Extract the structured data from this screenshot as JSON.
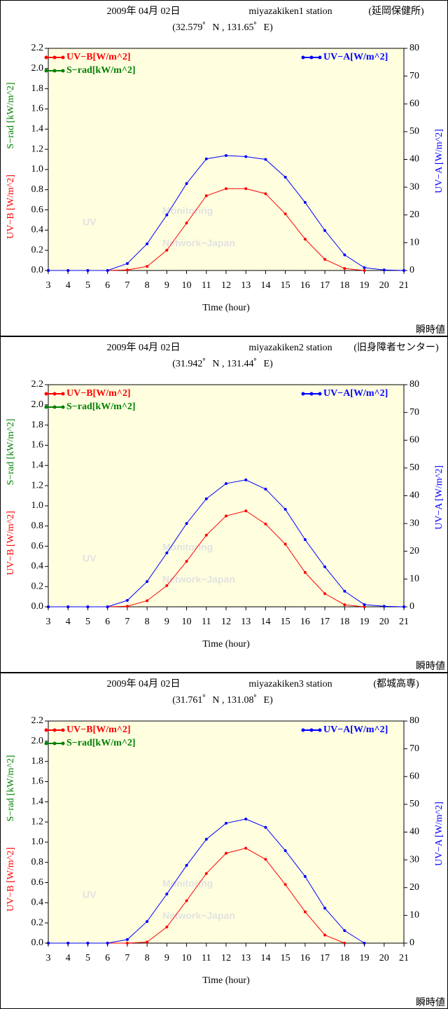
{
  "chart_data": [
    {
      "type": "line",
      "title": "2009年 04月 02日",
      "station": "miyazakiken1 station",
      "station_note": "(延岡保健所)",
      "subtitle": "(32.579゜N , 131.65゜E)",
      "xlabel": "Time (hour)",
      "corner_note": "瞬時値",
      "watermark": [
        "UV",
        "Monitoring",
        "Network−Japan"
      ],
      "background": "#ffffe0",
      "x": [
        3,
        4,
        5,
        6,
        7,
        8,
        9,
        10,
        11,
        12,
        13,
        14,
        15,
        16,
        17,
        18,
        19,
        20,
        21
      ],
      "xlim": [
        3,
        21
      ],
      "xticks": [
        3,
        4,
        5,
        6,
        7,
        8,
        9,
        10,
        11,
        12,
        13,
        14,
        15,
        16,
        17,
        18,
        19,
        20,
        21
      ],
      "ylim": [
        0,
        2.2
      ],
      "yticks": [
        {
          "value": 0,
          "label": "0.0"
        },
        0.2,
        0.4,
        0.6,
        0.8,
        {
          "value": 1,
          "label": "1.0"
        },
        1.2,
        1.4,
        1.6,
        1.8,
        {
          "value": 2,
          "label": "2.0"
        },
        2.2
      ],
      "y2lim": [
        0,
        80
      ],
      "y2ticks": [
        0,
        10,
        20,
        30,
        40,
        50,
        60,
        70,
        80
      ],
      "series": [
        {
          "name": "UV−B[W/m^2]",
          "axis_label": "UV−B [W/m^2]",
          "color": "#ff0000",
          "values": [
            0,
            0,
            0,
            0,
            0.005,
            0.04,
            0.2,
            0.47,
            0.74,
            0.81,
            0.81,
            0.76,
            0.56,
            0.31,
            0.11,
            0.02,
            0,
            null,
            null
          ]
        },
        {
          "name": "S−rad[kW/m^2]",
          "axis_label": "S−rad [kW/m^2]",
          "color": "#008000",
          "values": [
            null,
            null,
            null,
            null,
            null,
            null,
            null,
            null,
            null,
            null,
            null,
            null,
            null,
            null,
            null,
            null,
            null,
            null,
            null
          ]
        },
        {
          "name": "UV−A[W/m^2]",
          "axis_label": "UV−A [W/m^2]",
          "color": "#0000ff",
          "axis": "y2",
          "values": [
            0,
            0,
            0,
            0,
            2.5,
            9.6,
            20,
            31.3,
            40.2,
            41.4,
            41,
            40,
            33.6,
            24.5,
            14.4,
            5.6,
            1,
            0.2,
            0
          ]
        }
      ]
    },
    {
      "type": "line",
      "title": "2009年 04月 02日",
      "station": "miyazakiken2 station",
      "station_note": "(旧身障者センター)",
      "subtitle": "(31.942゜N , 131.44゜E)",
      "xlabel": "Time (hour)",
      "corner_note": "瞬時値",
      "watermark": [
        "UV",
        "Monitoring",
        "Network−Japan"
      ],
      "background": "#ffffe0",
      "x": [
        3,
        4,
        5,
        6,
        7,
        8,
        9,
        10,
        11,
        12,
        13,
        14,
        15,
        16,
        17,
        18,
        19,
        20,
        21
      ],
      "xlim": [
        3,
        21
      ],
      "xticks": [
        3,
        4,
        5,
        6,
        7,
        8,
        9,
        10,
        11,
        12,
        13,
        14,
        15,
        16,
        17,
        18,
        19,
        20,
        21
      ],
      "ylim": [
        0,
        2.2
      ],
      "yticks": [
        {
          "value": 0,
          "label": "0.0"
        },
        0.2,
        0.4,
        0.6,
        0.8,
        {
          "value": 1,
          "label": "1.0"
        },
        1.2,
        1.4,
        1.6,
        1.8,
        {
          "value": 2,
          "label": "2.0"
        },
        2.2
      ],
      "y2lim": [
        0,
        80
      ],
      "y2ticks": [
        0,
        10,
        20,
        30,
        40,
        50,
        60,
        70,
        80
      ],
      "series": [
        {
          "name": "UV−B[W/m^2]",
          "axis_label": "UV−B [W/m^2]",
          "color": "#ff0000",
          "values": [
            0,
            0,
            0,
            0,
            0.005,
            0.06,
            0.21,
            0.45,
            0.71,
            0.9,
            0.95,
            0.82,
            0.62,
            0.34,
            0.13,
            0.02,
            0,
            null,
            null
          ]
        },
        {
          "name": "S−rad[kW/m^2]",
          "axis_label": "S−rad [kW/m^2]",
          "color": "#008000",
          "values": [
            null,
            null,
            null,
            null,
            null,
            null,
            null,
            null,
            null,
            null,
            null,
            null,
            null,
            null,
            null,
            null,
            null,
            null,
            null
          ]
        },
        {
          "name": "UV−A[W/m^2]",
          "axis_label": "UV−A [W/m^2]",
          "color": "#0000ff",
          "axis": "y2",
          "values": [
            0,
            0,
            0,
            0,
            2.3,
            9.1,
            19.4,
            30,
            38.9,
            44.4,
            45.7,
            42.4,
            35.1,
            24.2,
            14.4,
            5.6,
            0.8,
            0.2,
            0
          ]
        }
      ]
    },
    {
      "type": "line",
      "title": "2009年 04月 02日",
      "station": "miyazakiken3 station",
      "station_note": "(都城高専)",
      "subtitle": "(31.761゜N , 131.08゜E)",
      "xlabel": "Time (hour)",
      "corner_note": "瞬時値",
      "watermark": [
        "UV",
        "Monitoring",
        "Network−Japan"
      ],
      "background": "#ffffe0",
      "x": [
        3,
        4,
        5,
        6,
        7,
        8,
        9,
        10,
        11,
        12,
        13,
        14,
        15,
        16,
        17,
        18,
        19,
        20,
        21
      ],
      "xlim": [
        3,
        21
      ],
      "xticks": [
        3,
        4,
        5,
        6,
        7,
        8,
        9,
        10,
        11,
        12,
        13,
        14,
        15,
        16,
        17,
        18,
        19,
        20,
        21
      ],
      "ylim": [
        0,
        2.2
      ],
      "yticks": [
        {
          "value": 0,
          "label": "0.0"
        },
        0.2,
        0.4,
        0.6,
        0.8,
        {
          "value": 1,
          "label": "1.0"
        },
        1.2,
        1.4,
        1.6,
        1.8,
        {
          "value": 2,
          "label": "2.0"
        },
        2.2
      ],
      "y2lim": [
        0,
        80
      ],
      "y2ticks": [
        0,
        10,
        20,
        30,
        40,
        50,
        60,
        70,
        80
      ],
      "series": [
        {
          "name": "UV−B[W/m^2]",
          "axis_label": "UV−B [W/m^2]",
          "color": "#ff0000",
          "values": [
            0,
            0,
            0,
            0,
            0,
            0.01,
            0.16,
            0.42,
            0.69,
            0.89,
            0.94,
            0.83,
            0.58,
            0.31,
            0.08,
            0,
            null,
            null,
            null
          ]
        },
        {
          "name": "S−rad[kW/m^2]",
          "axis_label": "S−rad [kW/m^2]",
          "color": "#008000",
          "values": [
            null,
            null,
            null,
            null,
            null,
            null,
            null,
            null,
            null,
            null,
            null,
            null,
            null,
            null,
            null,
            null,
            null,
            null,
            null
          ]
        },
        {
          "name": "UV−A[W/m^2]",
          "axis_label": "UV−A [W/m^2]",
          "color": "#0000ff",
          "axis": "y2",
          "values": [
            0,
            0,
            0,
            0,
            1.3,
            7.8,
            17.7,
            28,
            37.4,
            43.2,
            44.7,
            41.7,
            33.3,
            24,
            12.6,
            4.5,
            0,
            null,
            null
          ]
        }
      ]
    }
  ]
}
